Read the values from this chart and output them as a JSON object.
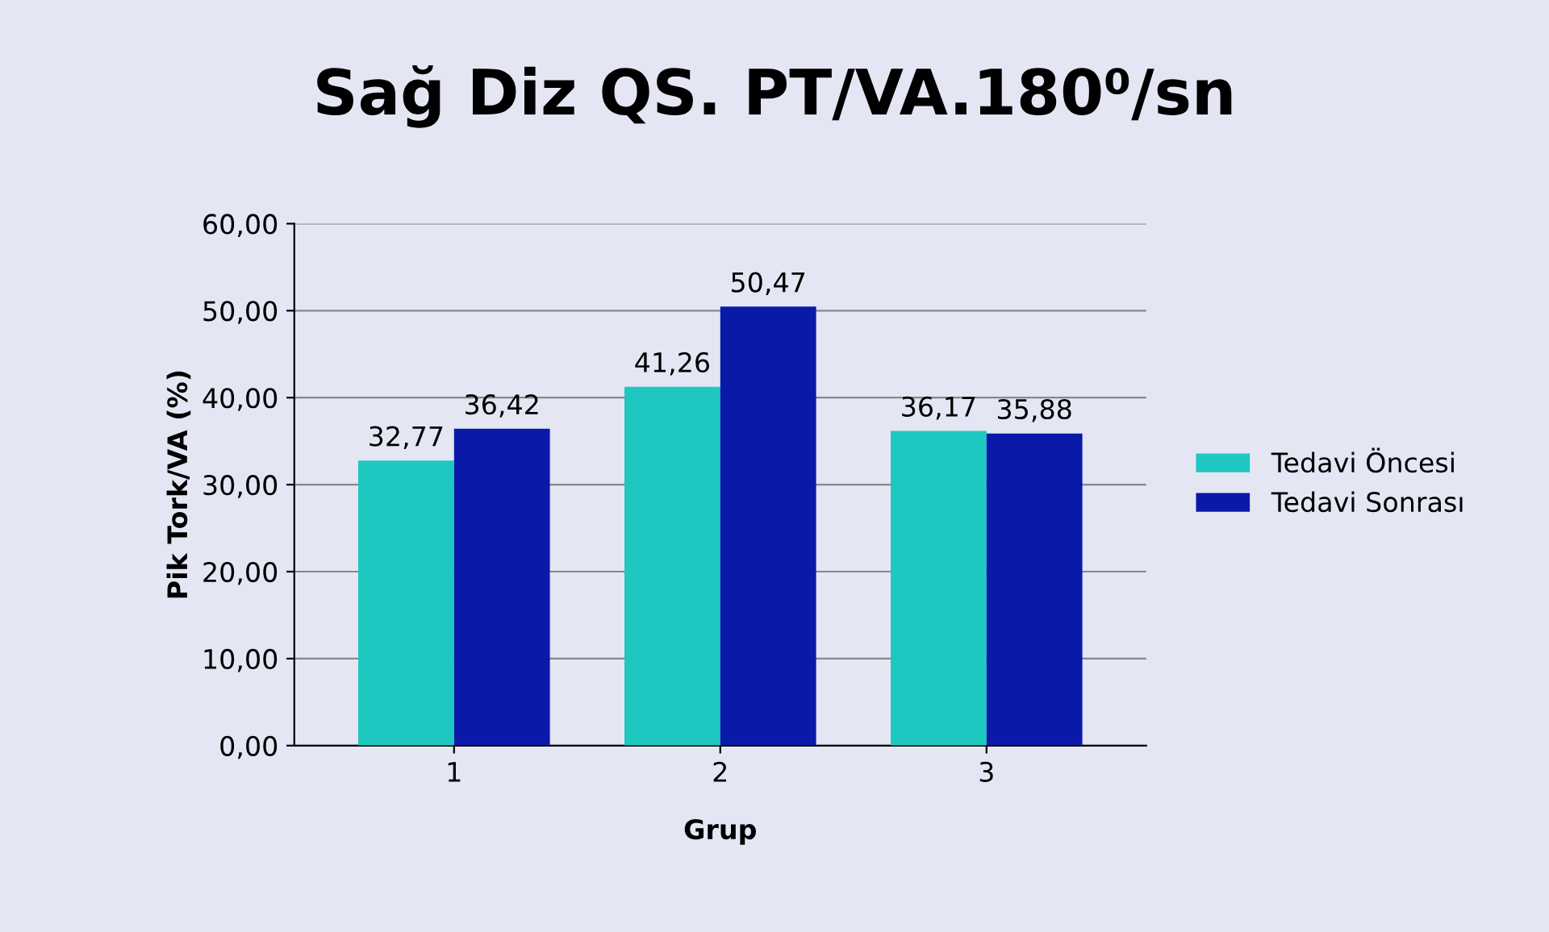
{
  "chart_data": {
    "type": "bar",
    "title": "Sağ Diz QS. PT/VA.180⁰/sn",
    "xlabel": "Grup",
    "ylabel": "Pik Tork/VA (%)",
    "categories": [
      "1",
      "2",
      "3"
    ],
    "series": [
      {
        "name": "Tedavi Öncesi",
        "color": "#1ec8c0",
        "values": [
          32.77,
          41.26,
          36.17
        ],
        "value_labels": [
          "32,77",
          "41,26",
          "36,17"
        ]
      },
      {
        "name": "Tedavi Sonrası",
        "color": "#0a1aa8",
        "values": [
          36.42,
          50.47,
          35.88
        ],
        "value_labels": [
          "36,42",
          "50,47",
          "35,88"
        ]
      }
    ],
    "ylim": [
      0,
      60
    ],
    "yticks": [
      {
        "value": 0,
        "label": "0,00"
      },
      {
        "value": 10,
        "label": "10,00"
      },
      {
        "value": 20,
        "label": "20,00"
      },
      {
        "value": 30,
        "label": "30,00"
      },
      {
        "value": 40,
        "label": "40,00"
      },
      {
        "value": 50,
        "label": "50,00"
      },
      {
        "value": 60,
        "label": "60,00"
      }
    ],
    "grid": "y",
    "legend": "right"
  }
}
